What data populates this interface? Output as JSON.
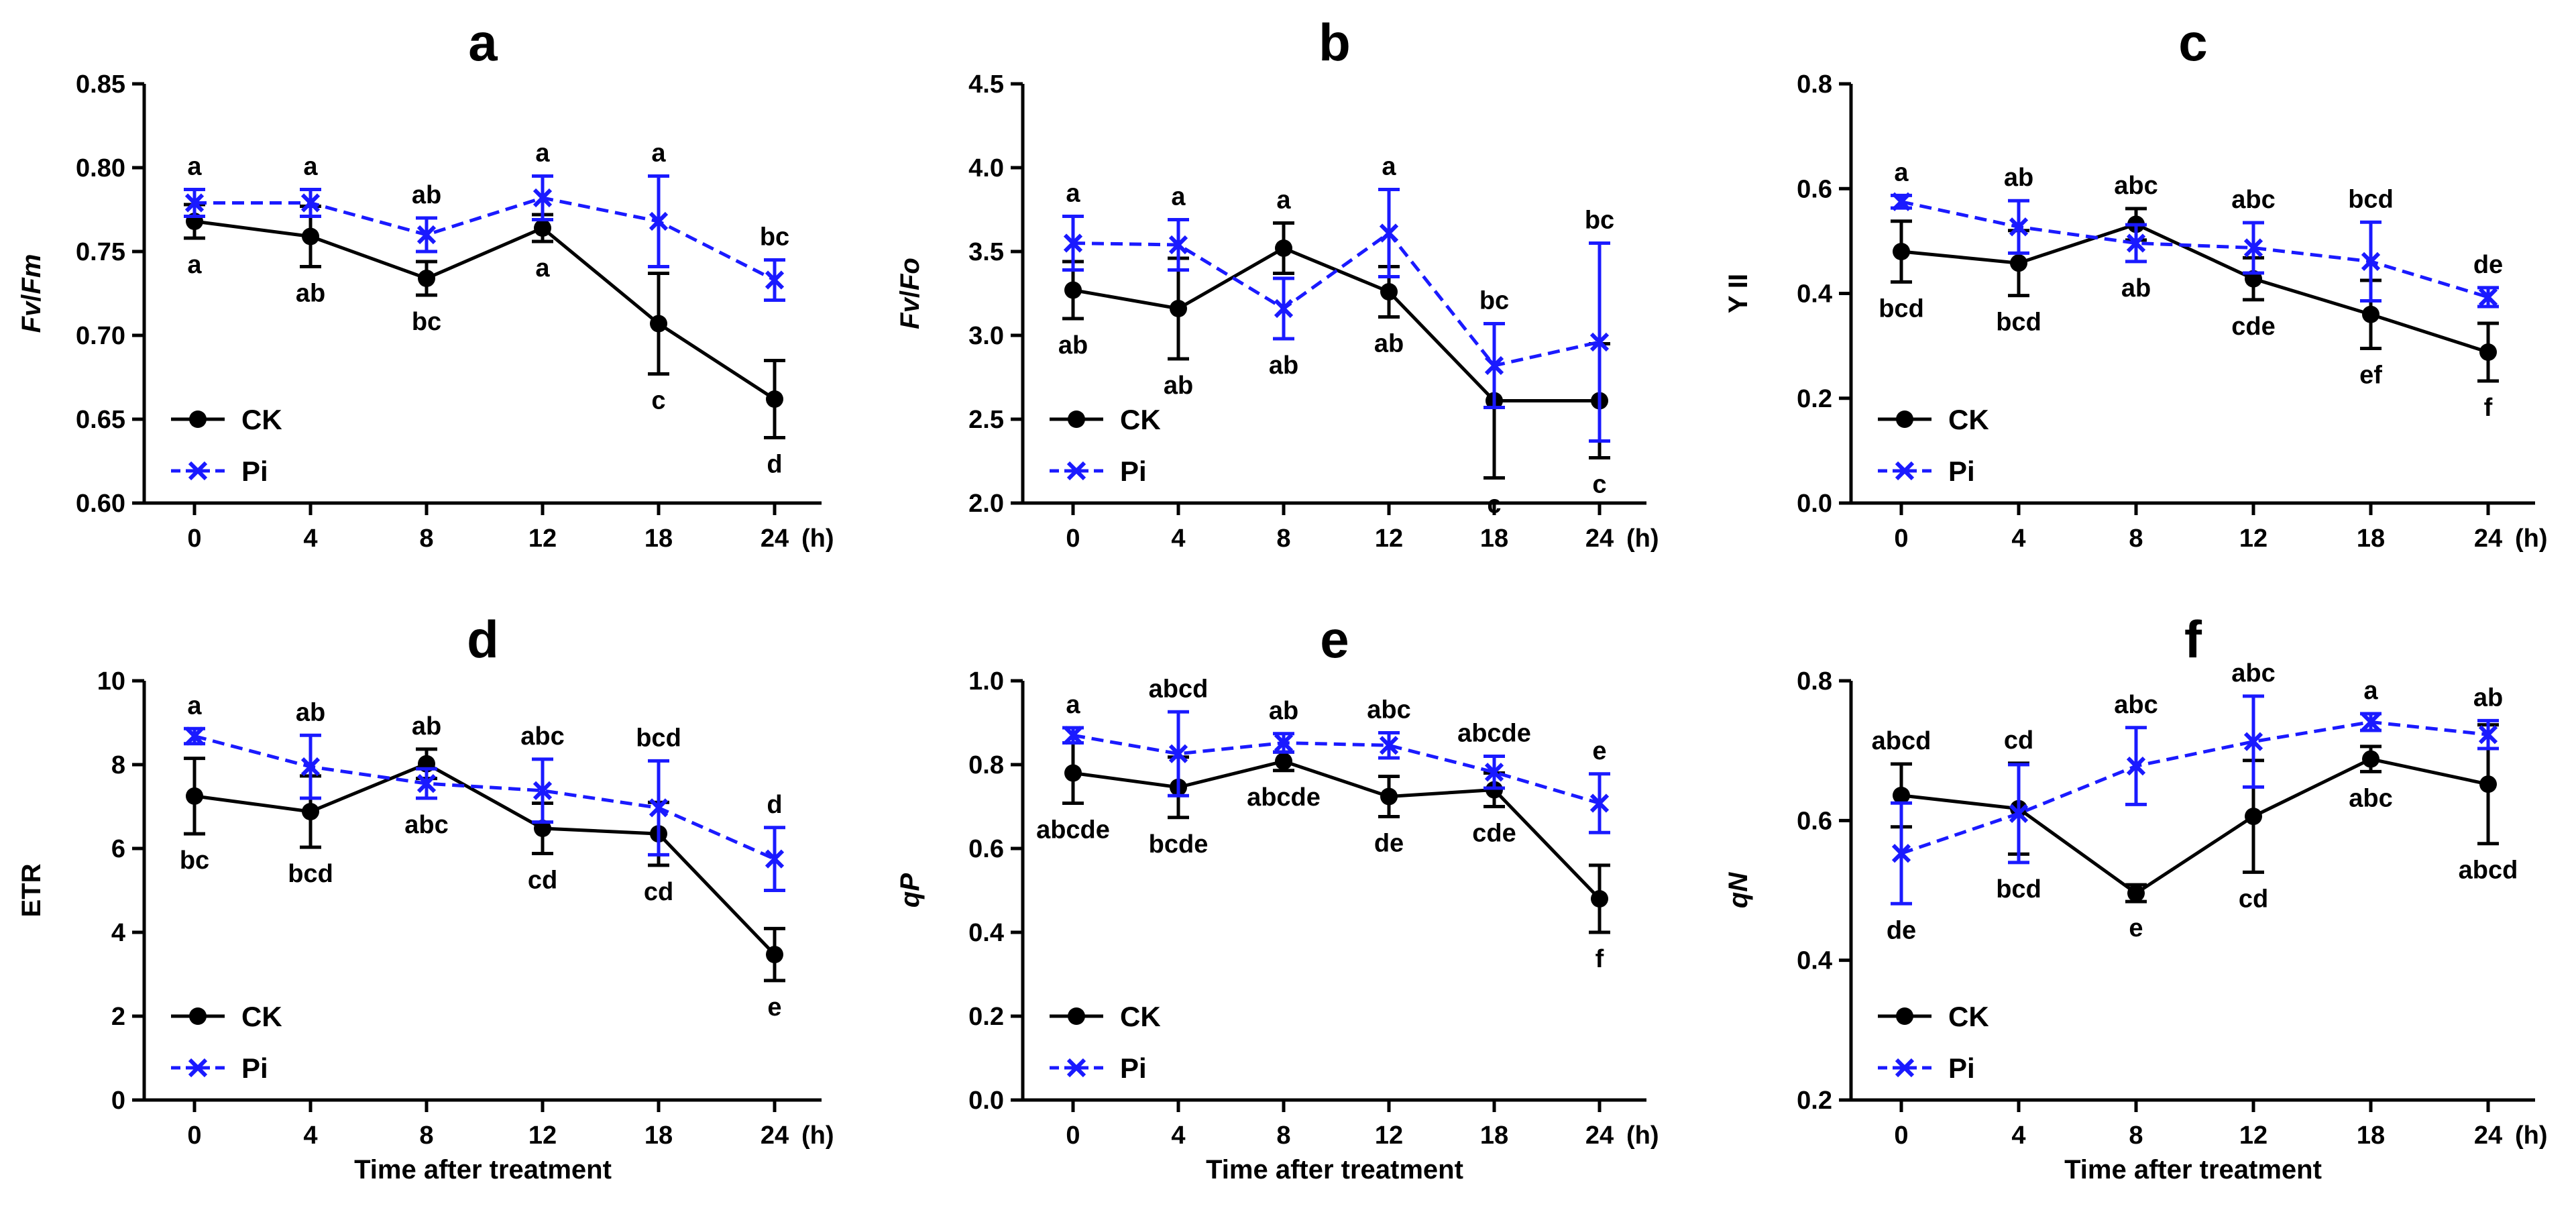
{
  "colors": {
    "ck": "#000000",
    "pi": "#1a1aff",
    "axis": "#000000"
  },
  "legend": {
    "ck_label": "CK",
    "pi_label": "Pi"
  },
  "xlabel": "Time after treatment",
  "x_unit": "(h)",
  "chart_data": [
    {
      "type": "line",
      "title": "a",
      "ylabel_main": "Fv",
      "ylabel_sep": "/",
      "ylabel_sub": "Fm",
      "ylabel_italic": true,
      "categories": [
        "0",
        "4",
        "8",
        "12",
        "18",
        "24"
      ],
      "ylim": [
        0.6,
        0.85
      ],
      "yticks": [
        "0.60",
        "0.65",
        "0.70",
        "0.75",
        "0.80",
        "0.85"
      ],
      "show_xlabel": false,
      "series": [
        {
          "name": "CK",
          "values": [
            0.768,
            0.759,
            0.734,
            0.764,
            0.707,
            0.662
          ],
          "errors": [
            0.01,
            0.018,
            0.01,
            0.008,
            0.03,
            0.023
          ],
          "labels": [
            "a",
            "ab",
            "bc",
            "a",
            "c",
            "d"
          ]
        },
        {
          "name": "Pi",
          "values": [
            0.779,
            0.779,
            0.76,
            0.782,
            0.768,
            0.733
          ],
          "errors": [
            0.008,
            0.008,
            0.01,
            0.013,
            0.027,
            0.012
          ],
          "labels": [
            "a",
            "a",
            "ab",
            "a",
            "a",
            "bc"
          ]
        }
      ]
    },
    {
      "type": "line",
      "title": "b",
      "ylabel_main": "Fv",
      "ylabel_sep": "/",
      "ylabel_sub": "Fo",
      "ylabel_italic": true,
      "categories": [
        "0",
        "4",
        "8",
        "12",
        "18",
        "24"
      ],
      "ylim": [
        2.0,
        4.5
      ],
      "yticks": [
        "2.0",
        "2.5",
        "3.0",
        "3.5",
        "4.0",
        "4.5"
      ],
      "show_xlabel": false,
      "series": [
        {
          "name": "CK",
          "values": [
            3.27,
            3.16,
            3.52,
            3.26,
            2.61,
            2.61
          ],
          "errors": [
            0.17,
            0.3,
            0.15,
            0.15,
            0.46,
            0.34
          ],
          "labels": [
            "ab",
            "ab",
            "a",
            "ab",
            "c",
            "c"
          ]
        },
        {
          "name": "Pi",
          "values": [
            3.55,
            3.54,
            3.16,
            3.61,
            2.82,
            2.96
          ],
          "errors": [
            0.16,
            0.15,
            0.18,
            0.26,
            0.25,
            0.59
          ],
          "labels": [
            "a",
            "a",
            "ab",
            "a",
            "bc",
            "bc"
          ]
        }
      ]
    },
    {
      "type": "line",
      "title": "c",
      "ylabel_main": "Y II",
      "ylabel_sep": "",
      "ylabel_sub": "",
      "ylabel_italic": false,
      "categories": [
        "0",
        "4",
        "8",
        "12",
        "18",
        "24"
      ],
      "ylim": [
        0.0,
        0.8
      ],
      "yticks": [
        "0.0",
        "0.2",
        "0.4",
        "0.6",
        "0.8"
      ],
      "show_xlabel": false,
      "series": [
        {
          "name": "CK",
          "values": [
            0.48,
            0.458,
            0.532,
            0.428,
            0.36,
            0.288
          ],
          "errors": [
            0.058,
            0.062,
            0.03,
            0.04,
            0.065,
            0.055
          ],
          "labels": [
            "bcd",
            "bcd",
            "abc",
            "cde",
            "ef",
            "f"
          ]
        },
        {
          "name": "Pi",
          "values": [
            0.575,
            0.527,
            0.496,
            0.487,
            0.461,
            0.393
          ],
          "errors": [
            0.012,
            0.05,
            0.035,
            0.048,
            0.075,
            0.018
          ],
          "labels": [
            "a",
            "ab",
            "ab",
            "abc",
            "bcd",
            "de"
          ]
        }
      ]
    },
    {
      "type": "line",
      "title": "d",
      "ylabel_main": "ETR",
      "ylabel_sep": "",
      "ylabel_sub": "",
      "ylabel_italic": false,
      "categories": [
        "0",
        "4",
        "8",
        "12",
        "18",
        "24"
      ],
      "ylim": [
        0,
        10
      ],
      "yticks": [
        "0",
        "2",
        "4",
        "6",
        "8",
        "10"
      ],
      "show_xlabel": true,
      "series": [
        {
          "name": "CK",
          "values": [
            7.25,
            6.88,
            8.02,
            6.48,
            6.35,
            3.47
          ],
          "errors": [
            0.9,
            0.85,
            0.35,
            0.6,
            0.75,
            0.62
          ],
          "labels": [
            "bc",
            "bcd",
            "ab",
            "cd",
            "cd",
            "e"
          ]
        },
        {
          "name": "Pi",
          "values": [
            8.68,
            7.95,
            7.55,
            7.38,
            6.97,
            5.75
          ],
          "errors": [
            0.18,
            0.75,
            0.35,
            0.75,
            1.12,
            0.75
          ],
          "labels": [
            "a",
            "ab",
            "abc",
            "abc",
            "bcd",
            "d"
          ]
        }
      ]
    },
    {
      "type": "line",
      "title": "e",
      "ylabel_main": "qP",
      "ylabel_sep": "",
      "ylabel_sub": "",
      "ylabel_italic": true,
      "categories": [
        "0",
        "4",
        "8",
        "12",
        "18",
        "24"
      ],
      "ylim": [
        0.0,
        1.0
      ],
      "yticks": [
        "0.0",
        "0.2",
        "0.4",
        "0.6",
        "0.8",
        "1.0"
      ],
      "show_xlabel": true,
      "series": [
        {
          "name": "CK",
          "values": [
            0.78,
            0.746,
            0.808,
            0.724,
            0.74,
            0.48
          ],
          "errors": [
            0.072,
            0.072,
            0.022,
            0.048,
            0.04,
            0.08
          ],
          "labels": [
            "abcde",
            "bcde",
            "abcde",
            "de",
            "cde",
            "f"
          ]
        },
        {
          "name": "Pi",
          "values": [
            0.87,
            0.826,
            0.852,
            0.846,
            0.782,
            0.708
          ],
          "errors": [
            0.018,
            0.1,
            0.022,
            0.03,
            0.038,
            0.07
          ],
          "labels": [
            "a",
            "abcd",
            "ab",
            "abc",
            "abcde",
            "e"
          ]
        }
      ]
    },
    {
      "type": "line",
      "title": "f",
      "ylabel_main": "qN",
      "ylabel_sep": "",
      "ylabel_sub": "",
      "ylabel_italic": true,
      "categories": [
        "0",
        "4",
        "8",
        "12",
        "18",
        "24"
      ],
      "ylim": [
        0.2,
        0.8
      ],
      "yticks": [
        "0.2",
        "0.4",
        "0.6",
        "0.8"
      ],
      "show_xlabel": true,
      "series": [
        {
          "name": "CK",
          "values": [
            0.636,
            0.617,
            0.496,
            0.606,
            0.688,
            0.652
          ],
          "errors": [
            0.045,
            0.065,
            0.012,
            0.08,
            0.018,
            0.085
          ],
          "labels": [
            "abcd",
            "cd",
            "e",
            "cd",
            "abc",
            "abcd"
          ]
        },
        {
          "name": "Pi",
          "values": [
            0.553,
            0.61,
            0.678,
            0.713,
            0.741,
            0.723
          ],
          "errors": [
            0.072,
            0.07,
            0.055,
            0.065,
            0.012,
            0.02
          ],
          "labels": [
            "de",
            "bcd",
            "abc",
            "abc",
            "a",
            "ab"
          ]
        }
      ]
    }
  ]
}
